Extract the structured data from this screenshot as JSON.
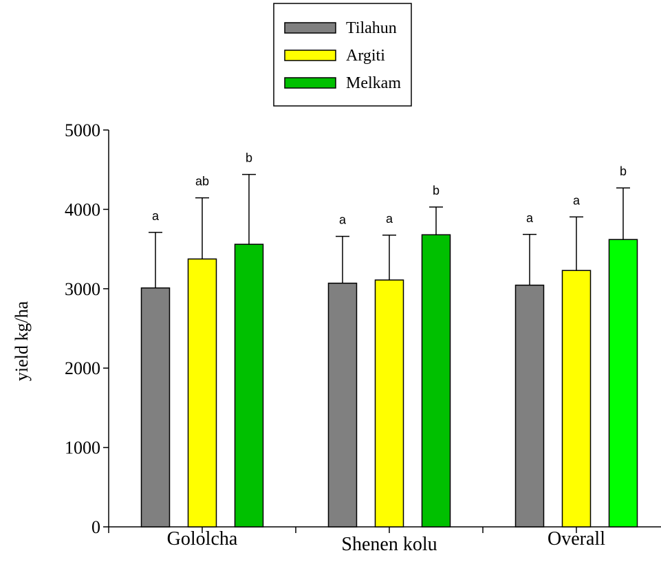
{
  "chart_data": {
    "type": "bar",
    "categories": [
      "Gololcha",
      "Shenen kolu",
      "Overall"
    ],
    "series": [
      {
        "name": "Tilahun",
        "color": "#808080",
        "values": [
          3010,
          3070,
          3045
        ],
        "errors": [
          700,
          590,
          640
        ],
        "letters": [
          "a",
          "a",
          "a"
        ]
      },
      {
        "name": "Argiti",
        "color": "#ffff00",
        "values": [
          3375,
          3110,
          3230
        ],
        "errors": [
          770,
          565,
          675
        ],
        "letters": [
          "ab",
          "a",
          "a"
        ]
      },
      {
        "name": "Melkam",
        "color": "#00c000",
        "values": [
          3560,
          3680,
          3620
        ],
        "errors": [
          880,
          350,
          650
        ],
        "letters": [
          "b",
          "b",
          "b"
        ]
      }
    ],
    "title": "",
    "xlabel": "",
    "ylabel": "yield kg/ha",
    "ylim": [
      0,
      5000
    ],
    "yticks": [
      0,
      1000,
      2000,
      3000,
      4000,
      5000
    ],
    "grid": false,
    "legend_position": "top-center"
  },
  "bar_colors_by_category": [
    [
      "#808080",
      "#ffff00",
      "#00c000"
    ],
    [
      "#808080",
      "#ffff00",
      "#00c000"
    ],
    [
      "#808080",
      "#ffff00",
      "#00ff00"
    ]
  ]
}
